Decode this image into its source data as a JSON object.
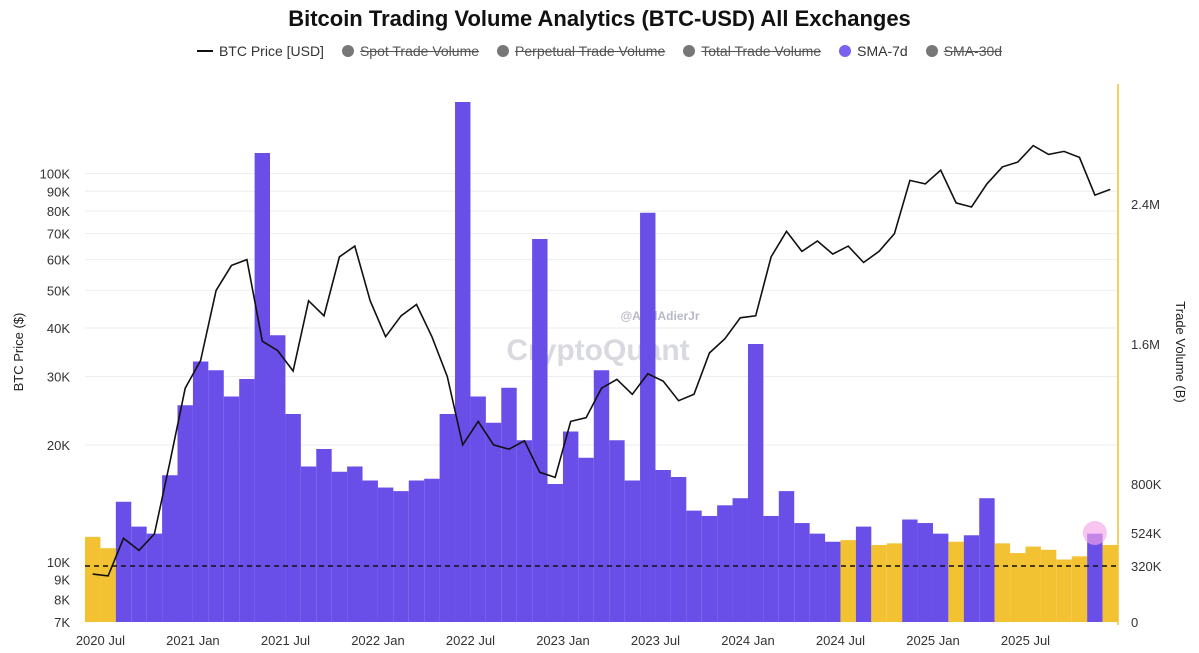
{
  "chart_data": {
    "type": "bar+line",
    "title": "Bitcoin Trading Volume Analytics (BTC-USD) All Exchanges",
    "legend": [
      {
        "name": "BTC Price [USD]",
        "kind": "line",
        "color": "#111111",
        "active": true
      },
      {
        "name": "Spot Trade Volume",
        "kind": "dot",
        "color": "#777777",
        "active": false
      },
      {
        "name": "Perpetual Trade Volume",
        "kind": "dot",
        "color": "#777777",
        "active": false
      },
      {
        "name": "Total Trade Volume",
        "kind": "dot",
        "color": "#777777",
        "active": false
      },
      {
        "name": "SMA-7d",
        "kind": "dot",
        "color": "#7b61f0",
        "active": true
      },
      {
        "name": "SMA-30d",
        "kind": "dot",
        "color": "#777777",
        "active": false
      }
    ],
    "x_ticks": [
      "2020 Jul",
      "2021 Jan",
      "2021 Jul",
      "2022 Jan",
      "2022 Jul",
      "2023 Jan",
      "2023 Jul",
      "2024 Jan",
      "2024 Jul",
      "2025 Jan",
      "2025 Jul"
    ],
    "x_range": [
      "2020-06",
      "2025-12"
    ],
    "y_left": {
      "label": "BTC Price ($)",
      "scale": "log",
      "range": [
        7000,
        170000
      ],
      "ticks": [
        {
          "value": 7000,
          "label": "7K"
        },
        {
          "value": 8000,
          "label": "8K"
        },
        {
          "value": 9000,
          "label": "9K"
        },
        {
          "value": 10000,
          "label": "10K"
        },
        {
          "value": 20000,
          "label": "20K"
        },
        {
          "value": 30000,
          "label": "30K"
        },
        {
          "value": 40000,
          "label": "40K"
        },
        {
          "value": 50000,
          "label": "50K"
        },
        {
          "value": 60000,
          "label": "60K"
        },
        {
          "value": 70000,
          "label": "70K"
        },
        {
          "value": 80000,
          "label": "80K"
        },
        {
          "value": 90000,
          "label": "90K"
        },
        {
          "value": 100000,
          "label": "100K"
        }
      ]
    },
    "y_right": {
      "label": "Trade Volume (B)",
      "scale": "custom",
      "ticks": [
        {
          "value": 0,
          "label": "0"
        },
        {
          "value": 320000,
          "label": "320K"
        },
        {
          "value": 524000,
          "label": "524K"
        },
        {
          "value": 800000,
          "label": "800K"
        },
        {
          "value": 1600000,
          "label": "1.6M"
        },
        {
          "value": 2400000,
          "label": "2.4M"
        }
      ]
    },
    "threshold_line": {
      "value": 320000,
      "style": "dashed"
    },
    "highlight_marker": {
      "date": "2025-11",
      "value": 524000,
      "color": "#f4a6e8"
    },
    "price_series": [
      {
        "t": "2020-06",
        "v": 9300
      },
      {
        "t": "2020-07",
        "v": 9200
      },
      {
        "t": "2020-08",
        "v": 11500
      },
      {
        "t": "2020-09",
        "v": 10700
      },
      {
        "t": "2020-10",
        "v": 11800
      },
      {
        "t": "2020-11",
        "v": 18000
      },
      {
        "t": "2020-12",
        "v": 28000
      },
      {
        "t": "2021-01",
        "v": 33000
      },
      {
        "t": "2021-02",
        "v": 50000
      },
      {
        "t": "2021-03",
        "v": 58000
      },
      {
        "t": "2021-04",
        "v": 60000
      },
      {
        "t": "2021-05",
        "v": 37000
      },
      {
        "t": "2021-06",
        "v": 35000
      },
      {
        "t": "2021-07",
        "v": 31000
      },
      {
        "t": "2021-08",
        "v": 47000
      },
      {
        "t": "2021-09",
        "v": 43000
      },
      {
        "t": "2021-10",
        "v": 61000
      },
      {
        "t": "2021-11",
        "v": 65000
      },
      {
        "t": "2021-12",
        "v": 47000
      },
      {
        "t": "2022-01",
        "v": 38000
      },
      {
        "t": "2022-02",
        "v": 43000
      },
      {
        "t": "2022-03",
        "v": 46000
      },
      {
        "t": "2022-04",
        "v": 38000
      },
      {
        "t": "2022-05",
        "v": 30000
      },
      {
        "t": "2022-06",
        "v": 20000
      },
      {
        "t": "2022-07",
        "v": 23000
      },
      {
        "t": "2022-08",
        "v": 20000
      },
      {
        "t": "2022-09",
        "v": 19500
      },
      {
        "t": "2022-10",
        "v": 20500
      },
      {
        "t": "2022-11",
        "v": 17000
      },
      {
        "t": "2022-12",
        "v": 16500
      },
      {
        "t": "2023-01",
        "v": 23000
      },
      {
        "t": "2023-02",
        "v": 23500
      },
      {
        "t": "2023-03",
        "v": 28000
      },
      {
        "t": "2023-04",
        "v": 29500
      },
      {
        "t": "2023-05",
        "v": 27000
      },
      {
        "t": "2023-06",
        "v": 30500
      },
      {
        "t": "2023-07",
        "v": 29200
      },
      {
        "t": "2023-08",
        "v": 26000
      },
      {
        "t": "2023-09",
        "v": 27000
      },
      {
        "t": "2023-10",
        "v": 34500
      },
      {
        "t": "2023-11",
        "v": 37500
      },
      {
        "t": "2023-12",
        "v": 42500
      },
      {
        "t": "2024-01",
        "v": 43000
      },
      {
        "t": "2024-02",
        "v": 61000
      },
      {
        "t": "2024-03",
        "v": 71000
      },
      {
        "t": "2024-04",
        "v": 63000
      },
      {
        "t": "2024-05",
        "v": 67000
      },
      {
        "t": "2024-06",
        "v": 62000
      },
      {
        "t": "2024-07",
        "v": 65000
      },
      {
        "t": "2024-08",
        "v": 59000
      },
      {
        "t": "2024-09",
        "v": 63000
      },
      {
        "t": "2024-10",
        "v": 70000
      },
      {
        "t": "2024-11",
        "v": 96000
      },
      {
        "t": "2024-12",
        "v": 94000
      },
      {
        "t": "2025-01",
        "v": 102000
      },
      {
        "t": "2025-02",
        "v": 84000
      },
      {
        "t": "2025-03",
        "v": 82000
      },
      {
        "t": "2025-04",
        "v": 94000
      },
      {
        "t": "2025-05",
        "v": 104000
      },
      {
        "t": "2025-06",
        "v": 107000
      },
      {
        "t": "2025-07",
        "v": 118000
      },
      {
        "t": "2025-08",
        "v": 112000
      },
      {
        "t": "2025-09",
        "v": 114000
      },
      {
        "t": "2025-10",
        "v": 110000
      },
      {
        "t": "2025-11",
        "v": 88000
      },
      {
        "t": "2025-12",
        "v": 91000
      }
    ],
    "sma7_volume_series": [
      {
        "t": "2020-06",
        "v": 500000,
        "state": "below"
      },
      {
        "t": "2020-07",
        "v": 430000,
        "state": "below"
      },
      {
        "t": "2020-08",
        "v": 700000,
        "state": "above"
      },
      {
        "t": "2020-09",
        "v": 560000,
        "state": "above"
      },
      {
        "t": "2020-10",
        "v": 520000,
        "state": "above"
      },
      {
        "t": "2020-11",
        "v": 850000,
        "state": "above"
      },
      {
        "t": "2020-12",
        "v": 1250000,
        "state": "above"
      },
      {
        "t": "2021-01",
        "v": 1500000,
        "state": "above"
      },
      {
        "t": "2021-02",
        "v": 1450000,
        "state": "above"
      },
      {
        "t": "2021-03",
        "v": 1300000,
        "state": "above"
      },
      {
        "t": "2021-04",
        "v": 1400000,
        "state": "above"
      },
      {
        "t": "2021-05",
        "v": 2700000,
        "state": "above"
      },
      {
        "t": "2021-06",
        "v": 1650000,
        "state": "above"
      },
      {
        "t": "2021-07",
        "v": 1200000,
        "state": "above"
      },
      {
        "t": "2021-08",
        "v": 900000,
        "state": "above"
      },
      {
        "t": "2021-09",
        "v": 1000000,
        "state": "above"
      },
      {
        "t": "2021-10",
        "v": 870000,
        "state": "above"
      },
      {
        "t": "2021-11",
        "v": 900000,
        "state": "above"
      },
      {
        "t": "2021-12",
        "v": 820000,
        "state": "above"
      },
      {
        "t": "2022-01",
        "v": 780000,
        "state": "above"
      },
      {
        "t": "2022-02",
        "v": 760000,
        "state": "above"
      },
      {
        "t": "2022-03",
        "v": 820000,
        "state": "above"
      },
      {
        "t": "2022-04",
        "v": 830000,
        "state": "above"
      },
      {
        "t": "2022-05",
        "v": 1200000,
        "state": "above"
      },
      {
        "t": "2022-06",
        "v": 3000000,
        "state": "above"
      },
      {
        "t": "2022-07",
        "v": 1300000,
        "state": "above"
      },
      {
        "t": "2022-08",
        "v": 1150000,
        "state": "above"
      },
      {
        "t": "2022-09",
        "v": 1350000,
        "state": "above"
      },
      {
        "t": "2022-10",
        "v": 1050000,
        "state": "above"
      },
      {
        "t": "2022-11",
        "v": 2200000,
        "state": "above"
      },
      {
        "t": "2022-12",
        "v": 800000,
        "state": "above"
      },
      {
        "t": "2023-01",
        "v": 1100000,
        "state": "above"
      },
      {
        "t": "2023-02",
        "v": 950000,
        "state": "above"
      },
      {
        "t": "2023-03",
        "v": 1450000,
        "state": "above"
      },
      {
        "t": "2023-04",
        "v": 1050000,
        "state": "above"
      },
      {
        "t": "2023-05",
        "v": 820000,
        "state": "above"
      },
      {
        "t": "2023-06",
        "v": 2350000,
        "state": "above"
      },
      {
        "t": "2023-07",
        "v": 880000,
        "state": "above"
      },
      {
        "t": "2023-08",
        "v": 840000,
        "state": "above"
      },
      {
        "t": "2023-09",
        "v": 650000,
        "state": "above"
      },
      {
        "t": "2023-10",
        "v": 620000,
        "state": "above"
      },
      {
        "t": "2023-11",
        "v": 680000,
        "state": "above"
      },
      {
        "t": "2023-12",
        "v": 720000,
        "state": "above"
      },
      {
        "t": "2024-01",
        "v": 1600000,
        "state": "above"
      },
      {
        "t": "2024-02",
        "v": 620000,
        "state": "above"
      },
      {
        "t": "2024-03",
        "v": 760000,
        "state": "above"
      },
      {
        "t": "2024-04",
        "v": 580000,
        "state": "above"
      },
      {
        "t": "2024-05",
        "v": 520000,
        "state": "above"
      },
      {
        "t": "2024-06",
        "v": 470000,
        "state": "above"
      },
      {
        "t": "2024-07",
        "v": 480000,
        "state": "below"
      },
      {
        "t": "2024-08",
        "v": 560000,
        "state": "above"
      },
      {
        "t": "2024-09",
        "v": 450000,
        "state": "below"
      },
      {
        "t": "2024-10",
        "v": 460000,
        "state": "below"
      },
      {
        "t": "2024-11",
        "v": 600000,
        "state": "above"
      },
      {
        "t": "2024-12",
        "v": 580000,
        "state": "above"
      },
      {
        "t": "2025-01",
        "v": 520000,
        "state": "above"
      },
      {
        "t": "2025-02",
        "v": 470000,
        "state": "below"
      },
      {
        "t": "2025-03",
        "v": 510000,
        "state": "above"
      },
      {
        "t": "2025-04",
        "v": 720000,
        "state": "above"
      },
      {
        "t": "2025-05",
        "v": 460000,
        "state": "below"
      },
      {
        "t": "2025-06",
        "v": 400000,
        "state": "below"
      },
      {
        "t": "2025-07",
        "v": 440000,
        "state": "below"
      },
      {
        "t": "2025-08",
        "v": 420000,
        "state": "below"
      },
      {
        "t": "2025-09",
        "v": 360000,
        "state": "below"
      },
      {
        "t": "2025-10",
        "v": 380000,
        "state": "below"
      },
      {
        "t": "2025-11",
        "v": 520000,
        "state": "above"
      },
      {
        "t": "2025-12",
        "v": 450000,
        "state": "below"
      }
    ],
    "colors": {
      "price": "#111111",
      "volume_above": "#6a4ee8",
      "volume_below": "#f2c232",
      "right_axis": "#f2c232",
      "grid": "#eeeeee"
    },
    "watermark": "CryptoQuant",
    "author_handle": "@AxelAdierJr"
  }
}
